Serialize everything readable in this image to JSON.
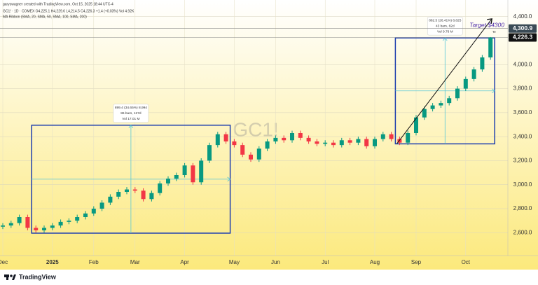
{
  "header": {
    "credit": "garyswagner created with TradingView.com, Oct 15, 2025 18:44 UTC-4",
    "symbol_line": "GC1! · 1D · COMEX  O4,225.1  H4,229.6  L4,214.5  C4,226.3  +1.4 (+0.03%)  Vol 4.92K",
    "indicator": "MA Ribbon (SMA, 20, SMA, 50, SMA, 100, SMA, 200)"
  },
  "chart_data": {
    "type": "candlestick",
    "watermark": "GC1!",
    "up_color": "#089981",
    "down_color": "#f23645",
    "categories": [
      "Dec",
      null,
      null,
      null,
      null,
      null,
      "2025",
      null,
      null,
      null,
      null,
      "Feb",
      null,
      null,
      null,
      null,
      "Mar",
      null,
      null,
      null,
      null,
      null,
      "Apr",
      null,
      null,
      null,
      null,
      null,
      "May",
      null,
      null,
      null,
      null,
      "Jun",
      null,
      null,
      null,
      null,
      null,
      "Jul",
      null,
      null,
      null,
      null,
      null,
      "Aug",
      null,
      null,
      null,
      null,
      "Sep",
      null,
      null,
      null,
      null,
      null,
      "Oct",
      null,
      null,
      null
    ],
    "ohlc": [
      [
        2650,
        2680,
        2630,
        2660
      ],
      [
        2660,
        2700,
        2640,
        2680
      ],
      [
        2680,
        2750,
        2660,
        2730
      ],
      [
        2730,
        2750,
        2620,
        2640
      ],
      [
        2640,
        2660,
        2600,
        2620
      ],
      [
        2620,
        2660,
        2600,
        2640
      ],
      [
        2640,
        2680,
        2620,
        2660
      ],
      [
        2660,
        2710,
        2640,
        2690
      ],
      [
        2690,
        2720,
        2670,
        2700
      ],
      [
        2700,
        2750,
        2680,
        2730
      ],
      [
        2730,
        2780,
        2710,
        2760
      ],
      [
        2760,
        2820,
        2740,
        2800
      ],
      [
        2800,
        2870,
        2780,
        2850
      ],
      [
        2850,
        2920,
        2830,
        2900
      ],
      [
        2900,
        2960,
        2880,
        2940
      ],
      [
        2940,
        2980,
        2920,
        2960
      ],
      [
        2960,
        2980,
        2930,
        2950
      ],
      [
        2950,
        2970,
        2860,
        2880
      ],
      [
        2880,
        2950,
        2860,
        2930
      ],
      [
        2930,
        3030,
        2910,
        3010
      ],
      [
        3010,
        3070,
        2990,
        3050
      ],
      [
        3050,
        3100,
        3030,
        3080
      ],
      [
        3080,
        3180,
        3060,
        3160
      ],
      [
        3160,
        3180,
        3000,
        3020
      ],
      [
        3020,
        3220,
        3000,
        3200
      ],
      [
        3200,
        3350,
        3180,
        3330
      ],
      [
        3330,
        3440,
        3310,
        3420
      ],
      [
        3420,
        3440,
        3340,
        3360
      ],
      [
        3360,
        3380,
        3310,
        3330
      ],
      [
        3330,
        3350,
        3230,
        3250
      ],
      [
        3250,
        3270,
        3190,
        3210
      ],
      [
        3210,
        3320,
        3190,
        3300
      ],
      [
        3300,
        3380,
        3280,
        3360
      ],
      [
        3360,
        3410,
        3340,
        3390
      ],
      [
        3390,
        3410,
        3350,
        3370
      ],
      [
        3370,
        3450,
        3350,
        3430
      ],
      [
        3430,
        3450,
        3370,
        3390
      ],
      [
        3390,
        3410,
        3340,
        3360
      ],
      [
        3360,
        3380,
        3320,
        3340
      ],
      [
        3340,
        3370,
        3320,
        3350
      ],
      [
        3350,
        3370,
        3310,
        3330
      ],
      [
        3330,
        3390,
        3310,
        3370
      ],
      [
        3370,
        3390,
        3330,
        3350
      ],
      [
        3350,
        3400,
        3330,
        3380
      ],
      [
        3380,
        3400,
        3300,
        3320
      ],
      [
        3320,
        3400,
        3300,
        3380
      ],
      [
        3380,
        3440,
        3360,
        3420
      ],
      [
        3420,
        3440,
        3360,
        3380
      ],
      [
        3380,
        3400,
        3330,
        3350
      ],
      [
        3350,
        3450,
        3330,
        3430
      ],
      [
        3430,
        3580,
        3410,
        3560
      ],
      [
        3560,
        3650,
        3540,
        3630
      ],
      [
        3630,
        3680,
        3610,
        3660
      ],
      [
        3660,
        3700,
        3640,
        3680
      ],
      [
        3680,
        3740,
        3660,
        3720
      ],
      [
        3720,
        3820,
        3700,
        3800
      ],
      [
        3800,
        3900,
        3780,
        3880
      ],
      [
        3880,
        3980,
        3860,
        3960
      ],
      [
        3960,
        4080,
        3940,
        4060
      ],
      [
        4060,
        4229.6,
        4040,
        4226.3
      ]
    ],
    "ylim": [
      2520,
      4480
    ],
    "yticks": [
      {
        "value": 2600,
        "label": "2,600.0"
      },
      {
        "value": 2800,
        "label": "2,800.0"
      },
      {
        "value": 3000,
        "label": "3,000.0"
      },
      {
        "value": 3200,
        "label": "3,200.0"
      },
      {
        "value": 3400,
        "label": "3,400.0"
      },
      {
        "value": 3600,
        "label": "3,600.0"
      },
      {
        "value": 3800,
        "label": "3,800.0"
      },
      {
        "value": 4000,
        "label": "4,000.0"
      },
      {
        "value": 4400,
        "label": "4,400.0"
      }
    ],
    "price_lines": [
      {
        "value": 4300.9,
        "label": "4,300.9",
        "color": "#3a4a55"
      },
      {
        "value": 4226.3,
        "label": "4,226.3",
        "color": "#111111"
      }
    ],
    "ranges": [
      {
        "start": 4,
        "end": 27,
        "low": 2596,
        "high": 3495.4,
        "lines": [
          "899.4 (34.65%) 8,994",
          "86 bars, 127d",
          "Vol 17.01 M"
        ]
      },
      {
        "start": 48,
        "end": 59,
        "low": 3340,
        "high": 4222.5,
        "lines": [
          "882.5 (26.41%) 8,825",
          "43 bars, 62d",
          "Vol 9.76 M"
        ]
      }
    ],
    "target": {
      "label": "Target $4300",
      "value": 4300,
      "note": "Te"
    },
    "grid": true
  },
  "footer": {
    "logo": "TradingView"
  }
}
